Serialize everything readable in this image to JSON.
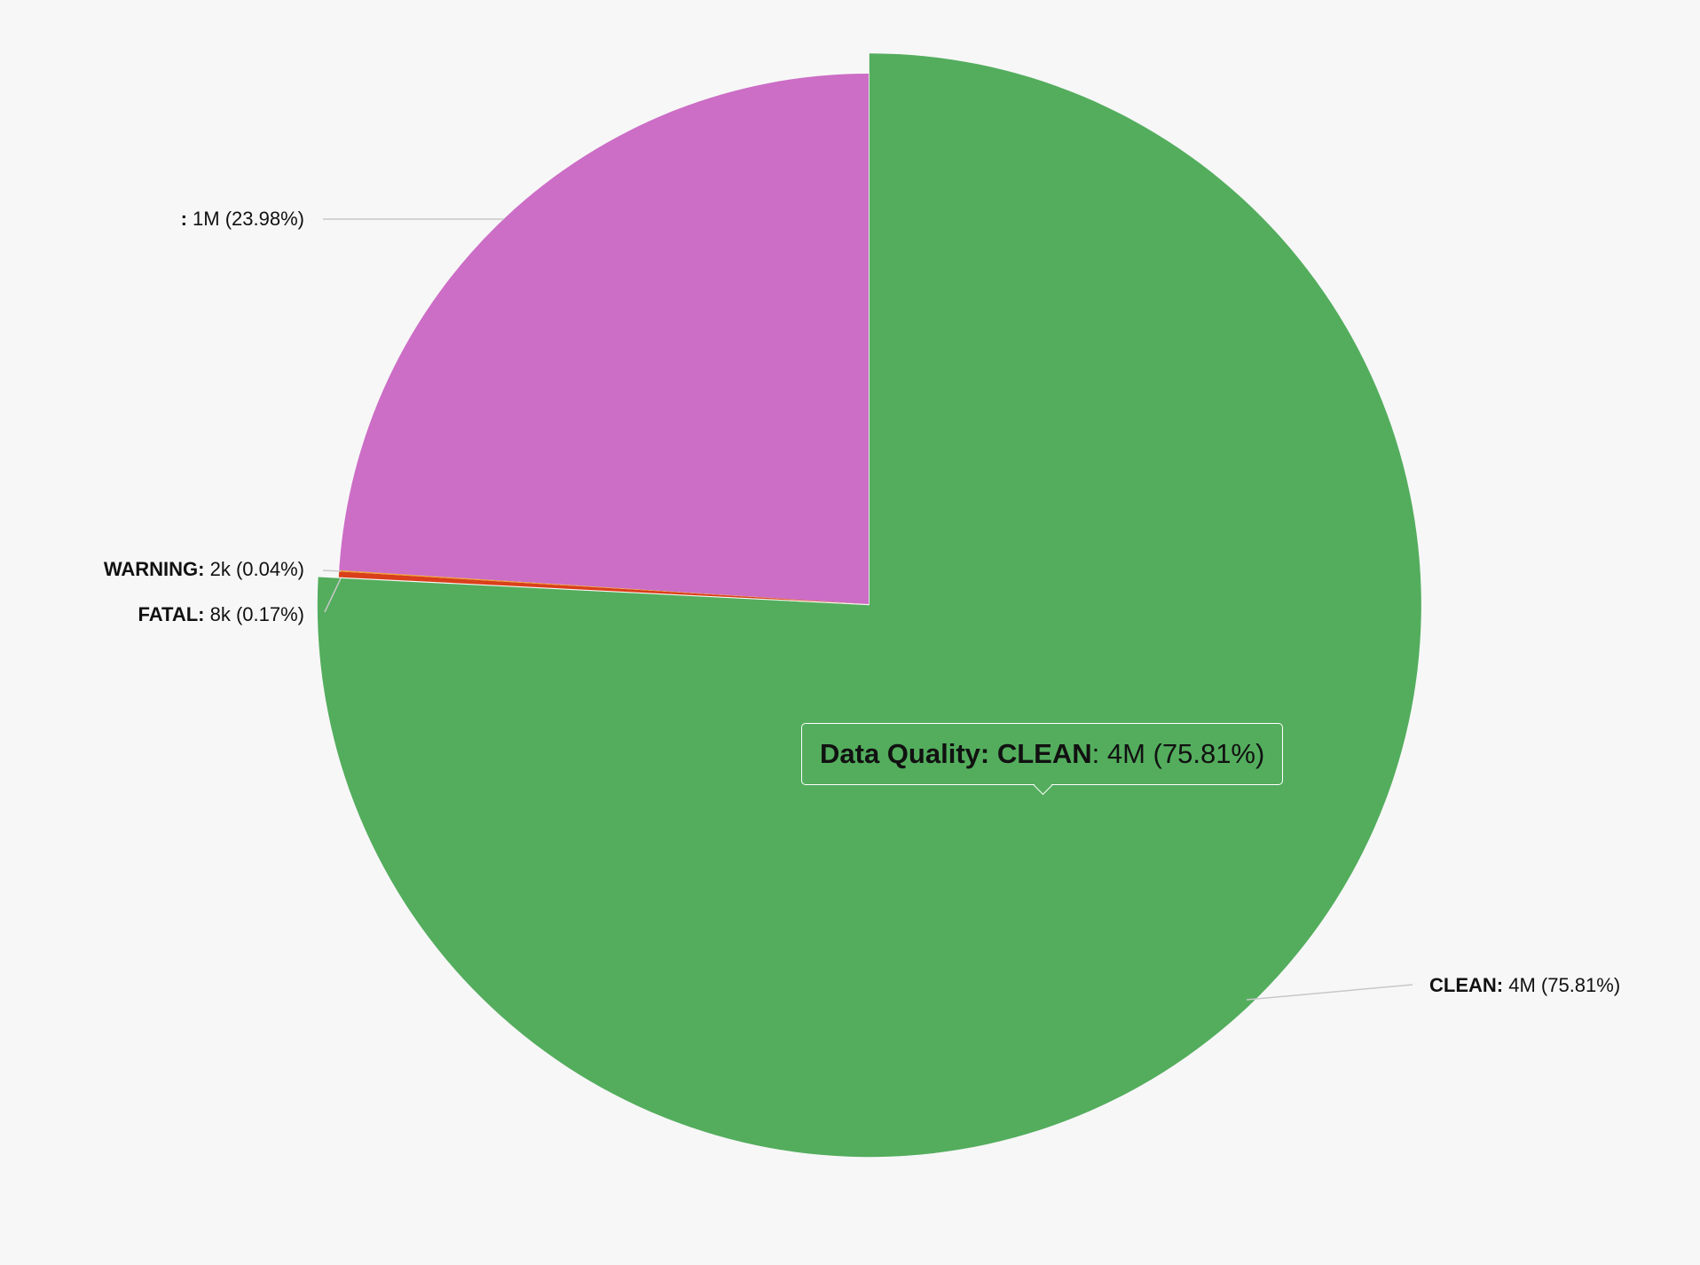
{
  "chart_data": {
    "type": "pie",
    "title": "",
    "start_angle_deg": 0,
    "direction": "clockwise",
    "slices": [
      {
        "key": "clean",
        "name": "CLEAN",
        "value_label": "4M",
        "percent": 75.81,
        "percent_label": "75.81%",
        "color": "#53ad5d",
        "exploded": true
      },
      {
        "key": "fatal",
        "name": "FATAL",
        "value_label": "8k",
        "percent": 0.17,
        "percent_label": "0.17%",
        "color": "#d93f1b",
        "exploded": false
      },
      {
        "key": "warning",
        "name": "WARNING",
        "value_label": "2k",
        "percent": 0.04,
        "percent_label": "0.04%",
        "color": "#f0a030",
        "exploded": false
      },
      {
        "key": "empty",
        "name": "",
        "value_label": "1M",
        "percent": 23.98,
        "percent_label": "23.98%",
        "color": "#cc6dc6",
        "exploded": false
      }
    ],
    "legend": "none"
  },
  "tooltip": {
    "series": "Data Quality",
    "name": "CLEAN",
    "value_label": "4M",
    "percent_label": "75.81%"
  }
}
